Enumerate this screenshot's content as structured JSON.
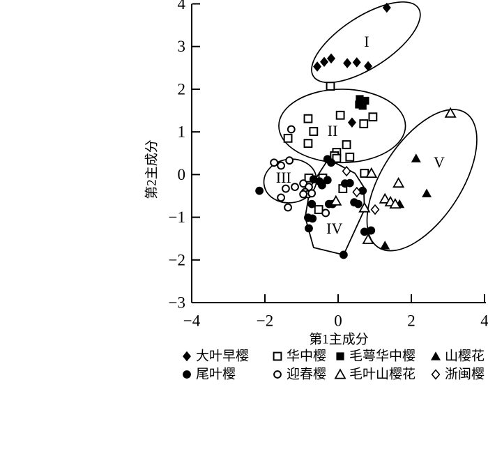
{
  "figure": {
    "background": "#ffffff",
    "ink": "#000000"
  },
  "chart_data": {
    "type": "scatter",
    "title": "",
    "xlabel": "第1主成分",
    "ylabel": "第2主成分",
    "xlim": [
      -4,
      4
    ],
    "ylim": [
      -3,
      4
    ],
    "xticks": [
      -4,
      -2,
      0,
      2,
      4
    ],
    "yticks": [
      4,
      3,
      2,
      1,
      0,
      -1,
      -2,
      -3
    ],
    "grid": false,
    "legend_position": "bottom",
    "series": [
      {
        "name": "大叶早樱",
        "marker": "filled-diamond",
        "points": [
          [
            1.33,
            3.91
          ],
          [
            -0.57,
            2.53
          ],
          [
            -0.38,
            2.64
          ],
          [
            -0.19,
            2.72
          ],
          [
            0.25,
            2.61
          ],
          [
            0.51,
            2.63
          ],
          [
            0.82,
            2.54
          ],
          [
            0.38,
            1.22
          ]
        ]
      },
      {
        "name": "华中樱",
        "marker": "open-square",
        "points": [
          [
            -0.21,
            2.07
          ],
          [
            -0.82,
            1.31
          ],
          [
            0.06,
            1.39
          ],
          [
            0.95,
            1.35
          ],
          [
            0.7,
            1.19
          ],
          [
            -0.67,
            1.01
          ],
          [
            -1.37,
            0.85
          ],
          [
            -0.82,
            0.73
          ],
          [
            0.23,
            0.7
          ],
          [
            -0.04,
            0.52
          ],
          [
            -0.1,
            0.44
          ],
          [
            -0.04,
            0.38
          ],
          [
            0.32,
            0.41
          ],
          [
            0.72,
            0.03
          ],
          [
            -0.8,
            -0.08
          ],
          [
            -0.42,
            -0.08
          ],
          [
            0.13,
            -0.33
          ],
          [
            -0.53,
            -0.82
          ]
        ]
      },
      {
        "name": "毛萼华中樱",
        "marker": "filled-square",
        "points": [
          [
            0.59,
            1.77
          ],
          [
            0.74,
            1.73
          ],
          [
            0.57,
            1.64
          ],
          [
            0.67,
            1.61
          ]
        ]
      },
      {
        "name": "山樱花",
        "marker": "filled-triangle",
        "points": [
          [
            2.13,
            0.38
          ],
          [
            2.42,
            -0.44
          ],
          [
            1.68,
            -0.69
          ],
          [
            1.28,
            -1.66
          ]
        ]
      },
      {
        "name": "尾叶樱",
        "marker": "filled-circle",
        "points": [
          [
            -2.15,
            -0.38
          ],
          [
            -0.29,
            0.36
          ],
          [
            -0.19,
            0.28
          ],
          [
            -0.67,
            -0.11
          ],
          [
            -0.51,
            -0.16
          ],
          [
            -0.44,
            -0.25
          ],
          [
            -0.29,
            -0.13
          ],
          [
            0.19,
            -0.21
          ],
          [
            0.32,
            -0.2
          ],
          [
            0.67,
            -0.38
          ],
          [
            -0.72,
            -0.69
          ],
          [
            -0.25,
            -0.69
          ],
          [
            -0.15,
            -0.69
          ],
          [
            0.44,
            -0.65
          ],
          [
            0.55,
            -0.69
          ],
          [
            -0.82,
            -1.01
          ],
          [
            -0.7,
            -1.03
          ],
          [
            -0.8,
            -1.26
          ],
          [
            0.72,
            -1.34
          ],
          [
            0.9,
            -1.31
          ],
          [
            0.15,
            -1.88
          ]
        ]
      },
      {
        "name": "迎春樱",
        "marker": "open-circle",
        "points": [
          [
            -1.28,
            1.06
          ],
          [
            -1.75,
            0.28
          ],
          [
            -1.56,
            0.21
          ],
          [
            -1.33,
            0.33
          ],
          [
            -1.43,
            -0.33
          ],
          [
            -1.18,
            -0.29
          ],
          [
            -1.56,
            -0.54
          ],
          [
            -1.37,
            -0.77
          ],
          [
            -0.95,
            -0.21
          ],
          [
            -0.8,
            -0.29
          ],
          [
            -0.9,
            -0.41
          ],
          [
            -0.82,
            -0.46
          ],
          [
            -0.95,
            -0.46
          ],
          [
            -0.72,
            -0.44
          ],
          [
            -0.34,
            -0.9
          ]
        ]
      },
      {
        "name": "毛叶山樱花",
        "marker": "open-triangle",
        "points": [
          [
            3.07,
            1.44
          ],
          [
            1.65,
            -0.2
          ],
          [
            1.28,
            -0.57
          ],
          [
            1.43,
            -0.64
          ],
          [
            1.56,
            -0.69
          ],
          [
            0.91,
            0.03
          ],
          [
            -0.06,
            -0.62
          ],
          [
            0.72,
            -0.78
          ],
          [
            0.82,
            -1.52
          ]
        ]
      },
      {
        "name": "浙闽樱",
        "marker": "open-diamond",
        "points": [
          [
            0.23,
            0.08
          ],
          [
            0.51,
            -0.41
          ],
          [
            1.01,
            -0.82
          ]
        ]
      }
    ],
    "groups": [
      {
        "label": "I",
        "shape": "ellipse",
        "cx": 0.76,
        "cy": 3.1,
        "rx": 1.71,
        "ry": 0.6,
        "angle": -33,
        "label_pos": [
          0.78,
          3.12
        ]
      },
      {
        "label": "II",
        "shape": "ellipse",
        "cx": 0.11,
        "cy": 1.14,
        "rx": 1.73,
        "ry": 0.86,
        "angle": 0,
        "label_pos": [
          -0.15,
          1.03
        ]
      },
      {
        "label": "III",
        "shape": "ellipse",
        "cx": -1.31,
        "cy": -0.15,
        "rx": 0.72,
        "ry": 0.51,
        "angle": -8,
        "label_pos": [
          -1.49,
          -0.07
        ]
      },
      {
        "label": "IV",
        "shape": "polygon",
        "vertices": [
          [
            -0.27,
            0.36
          ],
          [
            0.46,
            0.03
          ],
          [
            0.7,
            -0.29
          ],
          [
            0.72,
            -0.82
          ],
          [
            0.15,
            -1.88
          ],
          [
            -0.67,
            -1.71
          ],
          [
            -0.9,
            -1.0
          ],
          [
            -0.76,
            -0.29
          ]
        ],
        "label_pos": [
          -0.1,
          -1.26
        ]
      },
      {
        "label": "V",
        "shape": "ellipse",
        "cx": 2.29,
        "cy": -0.13,
        "rx": 2.19,
        "ry": 0.93,
        "angle": -57,
        "label_pos": [
          2.76,
          0.29
        ]
      }
    ],
    "legend_rows": [
      [
        "大叶早樱",
        "华中樱",
        "毛萼华中樱",
        "山樱花"
      ],
      [
        "尾叶樱",
        "迎春樱",
        "毛叶山樱花",
        "浙闽樱"
      ]
    ]
  }
}
